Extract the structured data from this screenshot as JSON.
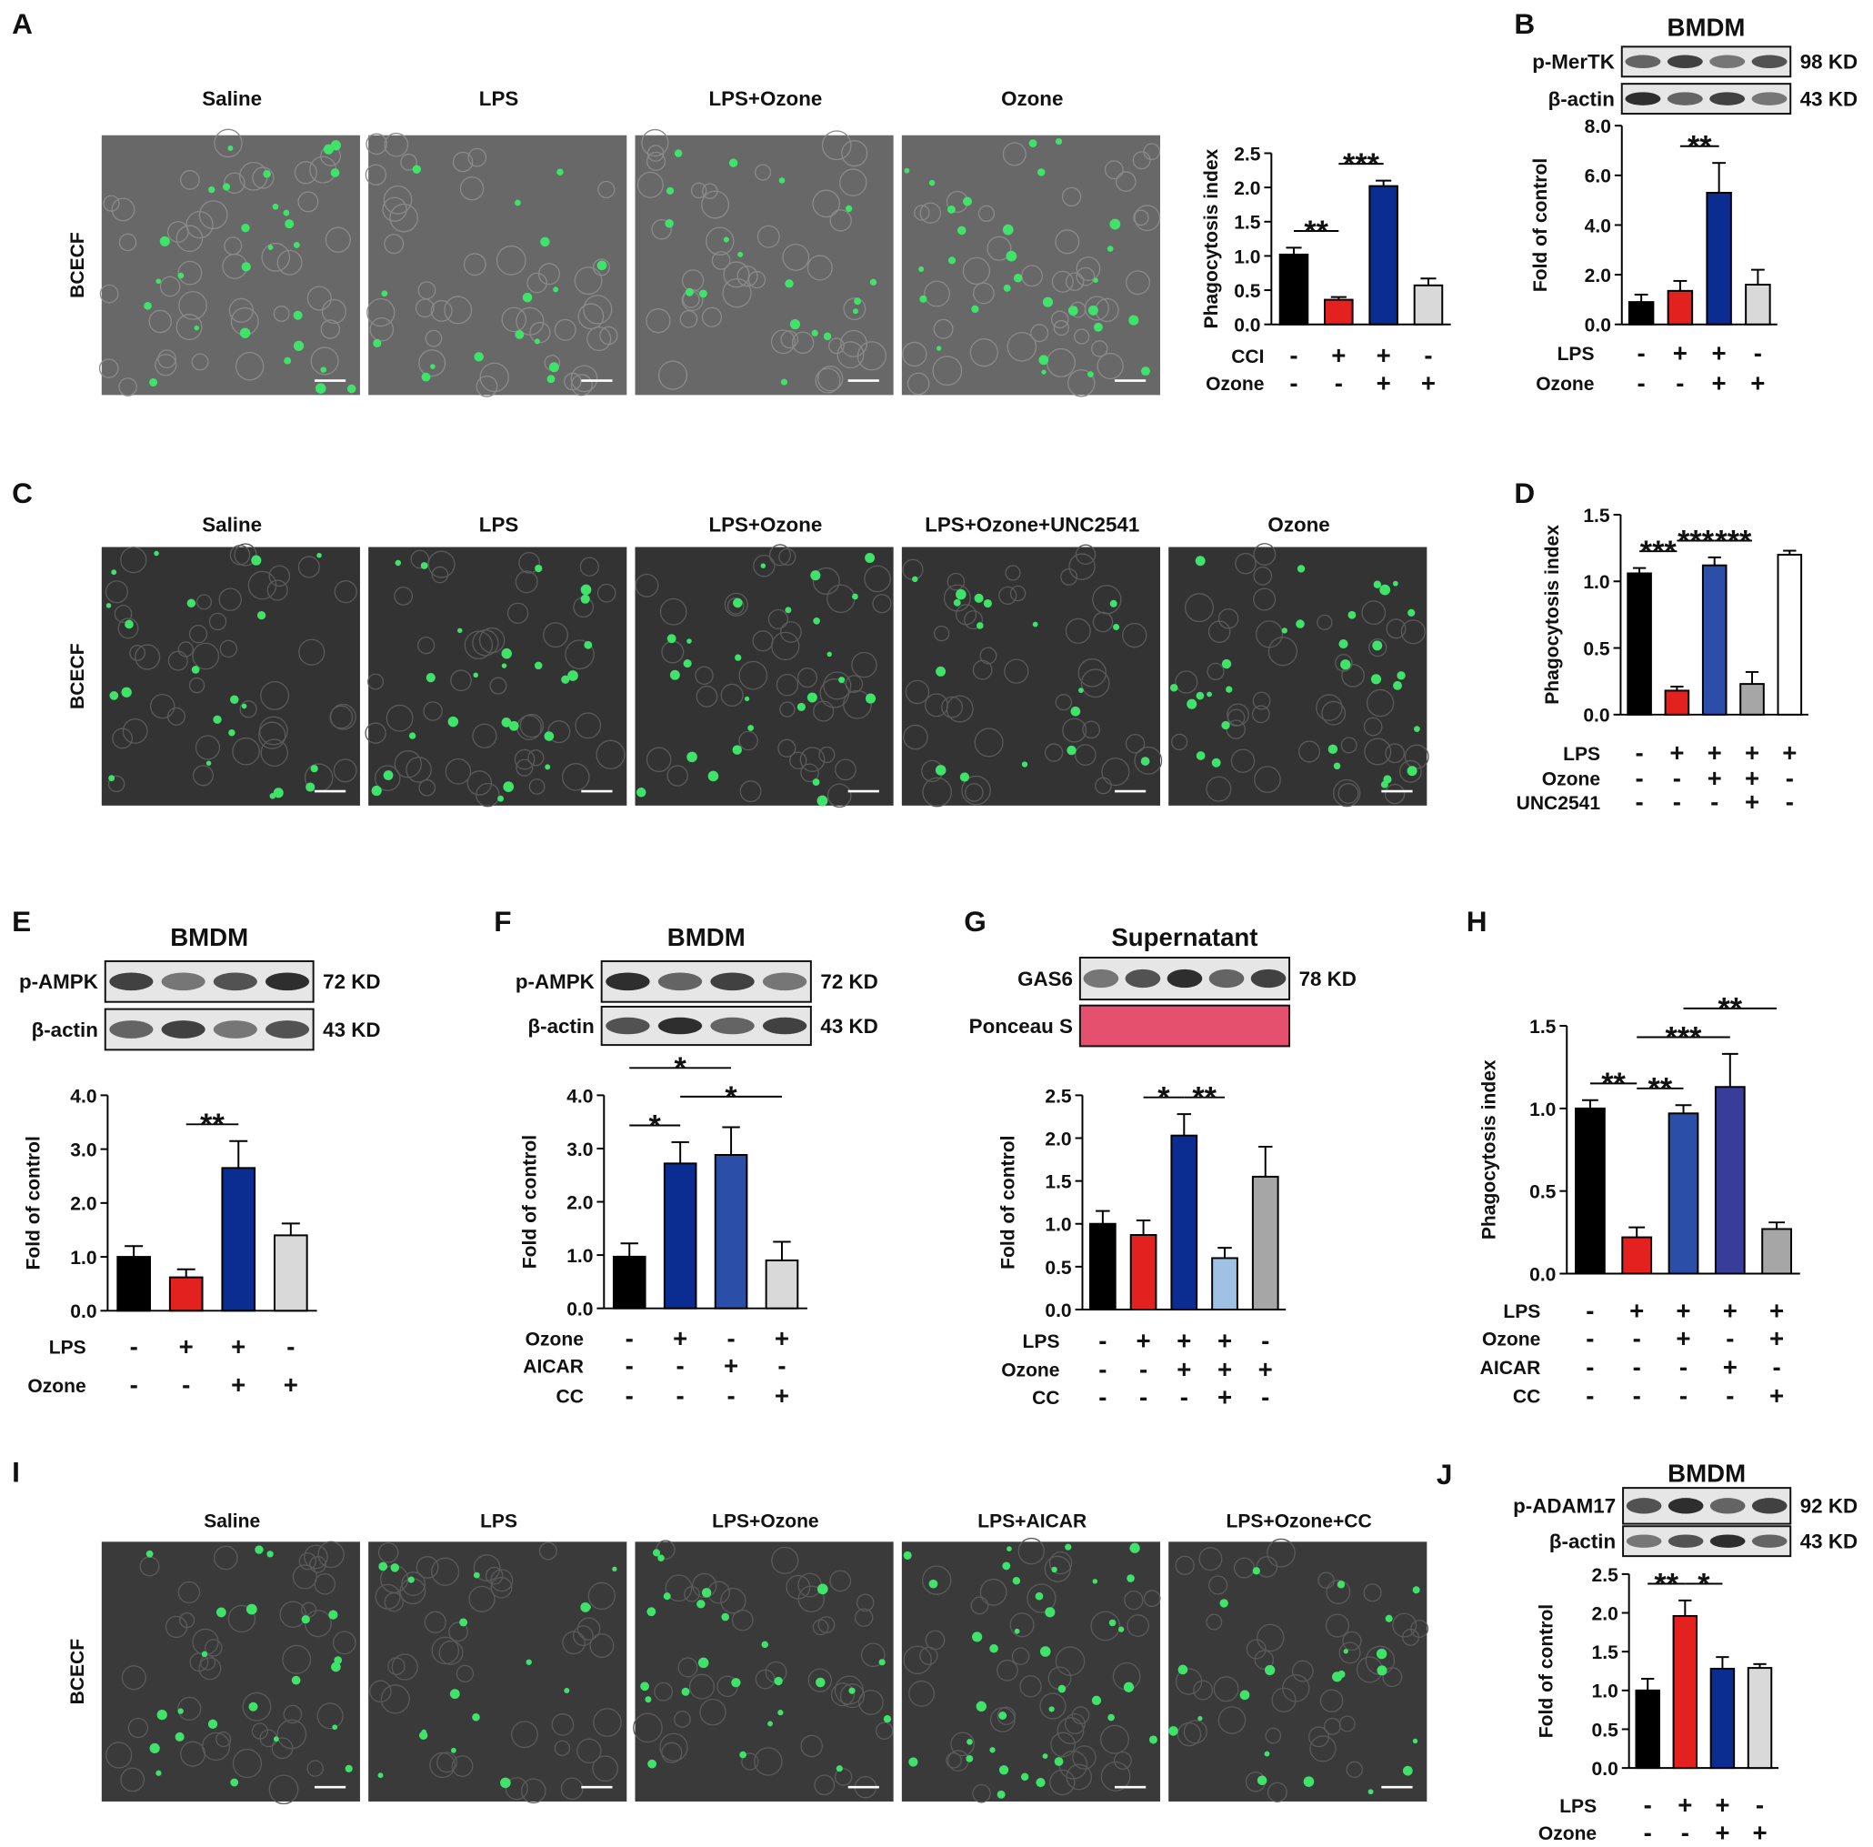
{
  "image_panels": [
    {
      "letter": "A",
      "stain": "BCECF",
      "labels": [
        "Saline",
        "LPS",
        "LPS+Ozone",
        "Ozone"
      ]
    },
    {
      "letter": "C",
      "stain": "BCECF",
      "labels": [
        "Saline",
        "LPS",
        "LPS+Ozone",
        "LPS+Ozone+UNC2541",
        "Ozone"
      ]
    },
    {
      "letter": "I",
      "stain": "BCECF",
      "labels": [
        "Saline",
        "LPS",
        "LPS+Ozone",
        "LPS+AICAR",
        "LPS+Ozone+CC"
      ]
    }
  ],
  "chart_data": [
    {
      "type": "bar",
      "y_label": "Phagocytosis index",
      "ylim": [
        0,
        2.5
      ],
      "yticks": [
        {
          "value": 0,
          "label": "0.0"
        },
        0.5,
        {
          "value": 1,
          "label": "1.0"
        },
        1.5,
        {
          "value": 2,
          "label": "2.0"
        },
        2.5
      ],
      "values": [
        1.02,
        0.36,
        2.02,
        0.57
      ],
      "errors": [
        0.1,
        0.04,
        0.08,
        0.1
      ],
      "colors": [
        "#000000",
        "#e3211f",
        "#0b2d91",
        "#d9d9d9"
      ],
      "significance": [
        {
          "label": "**",
          "bars": [
            0,
            1
          ]
        },
        {
          "label": "***",
          "bars": [
            1,
            2
          ]
        }
      ],
      "conditions": [
        {
          "name": "CCI",
          "signs": [
            "-",
            "+",
            "+",
            "-"
          ]
        },
        {
          "name": "Ozone",
          "signs": [
            "-",
            "-",
            "+",
            "+"
          ]
        }
      ]
    },
    {
      "type": "bar",
      "letter": "B",
      "blot": {
        "title": "BMDM",
        "rows": [
          {
            "label": "p-MerTK",
            "size": "98 KD"
          },
          {
            "label": "β-actin",
            "size": "43 KD"
          }
        ]
      },
      "y_label": "Fold of control",
      "ylim": [
        0,
        8
      ],
      "yticks": [
        {
          "value": 0,
          "label": "0.0"
        },
        {
          "value": 2,
          "label": "2.0"
        },
        {
          "value": 4,
          "label": "4.0"
        },
        {
          "value": 6,
          "label": "6.0"
        },
        {
          "value": 8,
          "label": "8.0"
        }
      ],
      "values": [
        0.9,
        1.35,
        5.3,
        1.6
      ],
      "errors": [
        0.3,
        0.4,
        1.2,
        0.6
      ],
      "colors": [
        "#000000",
        "#e3211f",
        "#0b2d91",
        "#d9d9d9"
      ],
      "significance": [
        {
          "label": "**",
          "bars": [
            1,
            2
          ]
        }
      ],
      "conditions": [
        {
          "name": "LPS",
          "signs": [
            "-",
            "+",
            "+",
            "-"
          ]
        },
        {
          "name": "Ozone",
          "signs": [
            "-",
            "-",
            "+",
            "+"
          ]
        }
      ]
    },
    {
      "type": "bar",
      "letter": "D",
      "y_label": "Phagocytosis index",
      "ylim": [
        0,
        1.5
      ],
      "yticks": [
        {
          "value": 0,
          "label": "0.0"
        },
        0.5,
        {
          "value": 1,
          "label": "1.0"
        },
        1.5
      ],
      "values": [
        1.06,
        0.18,
        1.12,
        0.23,
        1.2
      ],
      "errors": [
        0.04,
        0.03,
        0.06,
        0.09,
        0.03
      ],
      "colors": [
        "#000000",
        "#e3211f",
        "#2b4ea8",
        "#a6a6a6",
        "#ffffff"
      ],
      "significance": [
        {
          "label": "***",
          "bars": [
            0,
            1
          ]
        },
        {
          "label": "***",
          "bars": [
            2,
            3
          ]
        },
        {
          "label": "***",
          "bars": [
            1,
            2
          ]
        }
      ],
      "conditions": [
        {
          "name": "LPS",
          "signs": [
            "-",
            "+",
            "+",
            "+",
            "+"
          ]
        },
        {
          "name": "Ozone",
          "signs": [
            "-",
            "-",
            "+",
            "+",
            "-"
          ]
        },
        {
          "name": "UNC2541",
          "signs": [
            "-",
            "-",
            "-",
            "+",
            "-"
          ]
        }
      ]
    },
    {
      "type": "bar",
      "letter": "E",
      "blot": {
        "title": "BMDM",
        "rows": [
          {
            "label": "p-AMPK",
            "size": "72 KD"
          },
          {
            "label": "β-actin",
            "size": "43 KD"
          }
        ]
      },
      "y_label": "Fold of control",
      "ylim": [
        0,
        4
      ],
      "yticks": [
        {
          "value": 0,
          "label": "0.0"
        },
        {
          "value": 1,
          "label": "1.0"
        },
        {
          "value": 2,
          "label": "2.0"
        },
        {
          "value": 3,
          "label": "3.0"
        },
        {
          "value": 4,
          "label": "4.0"
        }
      ],
      "values": [
        1.0,
        0.62,
        2.65,
        1.4
      ],
      "errors": [
        0.2,
        0.15,
        0.5,
        0.22
      ],
      "colors": [
        "#000000",
        "#e3211f",
        "#0b2d91",
        "#d9d9d9"
      ],
      "significance": [
        {
          "label": "**",
          "bars": [
            1,
            2
          ]
        }
      ],
      "conditions": [
        {
          "name": "LPS",
          "signs": [
            "-",
            "+",
            "+",
            "-"
          ]
        },
        {
          "name": "Ozone",
          "signs": [
            "-",
            "-",
            "+",
            "+"
          ]
        }
      ]
    },
    {
      "type": "bar",
      "letter": "F",
      "blot": {
        "title": "BMDM",
        "rows": [
          {
            "label": "p-AMPK",
            "size": "72 KD"
          },
          {
            "label": "β-actin",
            "size": "43 KD"
          }
        ]
      },
      "y_label": "Fold of control",
      "ylim": [
        0,
        4
      ],
      "yticks": [
        {
          "value": 0,
          "label": "0.0"
        },
        {
          "value": 1,
          "label": "1.0"
        },
        {
          "value": 2,
          "label": "2.0"
        },
        {
          "value": 3,
          "label": "3.0"
        },
        {
          "value": 4,
          "label": "4.0"
        }
      ],
      "values": [
        0.97,
        2.72,
        2.88,
        0.9
      ],
      "errors": [
        0.25,
        0.4,
        0.52,
        0.35
      ],
      "colors": [
        "#000000",
        "#0b2d91",
        "#2b4ea8",
        "#d9d9d9"
      ],
      "significance": [
        {
          "label": "*",
          "bars": [
            0,
            1
          ]
        },
        {
          "label": "*",
          "bars": [
            1,
            3
          ]
        },
        {
          "label": "*",
          "bars": [
            0,
            2
          ]
        }
      ],
      "conditions": [
        {
          "name": "Ozone",
          "signs": [
            "-",
            "+",
            "-",
            "+"
          ]
        },
        {
          "name": "AICAR",
          "signs": [
            "-",
            "-",
            "+",
            "-"
          ]
        },
        {
          "name": "CC",
          "signs": [
            "-",
            "-",
            "-",
            "+"
          ]
        }
      ]
    },
    {
      "type": "bar",
      "letter": "G",
      "blot": {
        "title": "Supernatant",
        "rows": [
          {
            "label": "GAS6",
            "size": "78 KD"
          },
          {
            "label": "Ponceau S"
          }
        ]
      },
      "y_label": "Fold of control",
      "ylim": [
        0,
        2.5
      ],
      "yticks": [
        {
          "value": 0,
          "label": "0.0"
        },
        0.5,
        {
          "value": 1,
          "label": "1.0"
        },
        1.5,
        {
          "value": 2,
          "label": "2.0"
        },
        2.5
      ],
      "values": [
        1.0,
        0.87,
        2.03,
        0.6,
        1.55
      ],
      "errors": [
        0.15,
        0.17,
        0.25,
        0.12,
        0.35
      ],
      "colors": [
        "#000000",
        "#e3211f",
        "#0b2d91",
        "#9fc2e4",
        "#a6a6a6"
      ],
      "significance": [
        {
          "label": "*",
          "bars": [
            1,
            2
          ]
        },
        {
          "label": "**",
          "bars": [
            2,
            3
          ]
        }
      ],
      "conditions": [
        {
          "name": "LPS",
          "signs": [
            "-",
            "+",
            "+",
            "+",
            "-"
          ]
        },
        {
          "name": "Ozone",
          "signs": [
            "-",
            "-",
            "+",
            "+",
            "+"
          ]
        },
        {
          "name": "CC",
          "signs": [
            "-",
            "-",
            "-",
            "+",
            "-"
          ]
        }
      ]
    },
    {
      "type": "bar",
      "letter": "H",
      "y_label": "Phagocytosis index",
      "ylim": [
        0,
        1.5
      ],
      "yticks": [
        {
          "value": 0,
          "label": "0.0"
        },
        0.5,
        {
          "value": 1,
          "label": "1.0"
        },
        1.5
      ],
      "values": [
        1.0,
        0.22,
        0.97,
        1.13,
        0.27
      ],
      "errors": [
        0.05,
        0.06,
        0.05,
        0.2,
        0.04
      ],
      "colors": [
        "#000000",
        "#e3211f",
        "#2b4ea8",
        "#383d9a",
        "#a6a6a6"
      ],
      "significance": [
        {
          "label": "**",
          "bars": [
            0,
            1
          ]
        },
        {
          "label": "**",
          "bars": [
            1,
            2
          ]
        },
        {
          "label": "***",
          "bars": [
            1,
            3
          ]
        },
        {
          "label": "**",
          "bars": [
            2,
            4
          ]
        }
      ],
      "conditions": [
        {
          "name": "LPS",
          "signs": [
            "-",
            "+",
            "+",
            "+",
            "+"
          ]
        },
        {
          "name": "Ozone",
          "signs": [
            "-",
            "-",
            "+",
            "-",
            "+"
          ]
        },
        {
          "name": "AICAR",
          "signs": [
            "-",
            "-",
            "-",
            "+",
            "-"
          ]
        },
        {
          "name": "CC",
          "signs": [
            "-",
            "-",
            "-",
            "-",
            "+"
          ]
        }
      ]
    },
    {
      "type": "bar",
      "letter": "J",
      "blot": {
        "title": "BMDM",
        "rows": [
          {
            "label": "p-ADAM17",
            "size": "92 KD"
          },
          {
            "label": "β-actin",
            "size": "43 KD"
          }
        ]
      },
      "y_label": "Fold of control",
      "ylim": [
        0,
        2.5
      ],
      "yticks": [
        {
          "value": 0,
          "label": "0.0"
        },
        0.5,
        {
          "value": 1,
          "label": "1.0"
        },
        1.5,
        {
          "value": 2,
          "label": "2.0"
        },
        2.5
      ],
      "values": [
        1.0,
        1.96,
        1.28,
        1.29
      ],
      "errors": [
        0.15,
        0.2,
        0.15,
        0.05
      ],
      "colors": [
        "#000000",
        "#e3211f",
        "#0b2d91",
        "#d9d9d9"
      ],
      "significance": [
        {
          "label": "**",
          "bars": [
            0,
            1
          ]
        },
        {
          "label": "*",
          "bars": [
            1,
            2
          ]
        }
      ],
      "conditions": [
        {
          "name": "LPS",
          "signs": [
            "-",
            "+",
            "+",
            "-"
          ]
        },
        {
          "name": "Ozone",
          "signs": [
            "-",
            "-",
            "+",
            "+"
          ]
        }
      ]
    }
  ]
}
